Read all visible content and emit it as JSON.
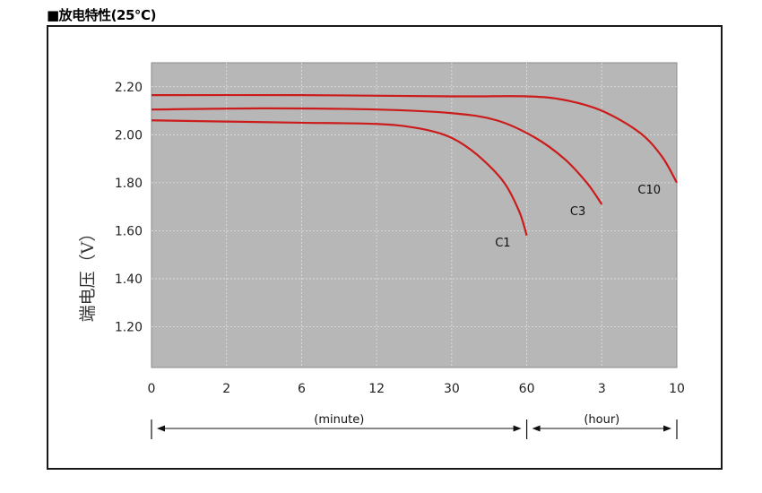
{
  "chart_data": {
    "type": "line",
    "title": "■放电特性(25℃)",
    "ylabel": "端电压（V）",
    "xlabel": "",
    "x_ticks": [
      "0",
      "2",
      "6",
      "12",
      "30",
      "60",
      "3",
      "10"
    ],
    "y_ticks": [
      "2.20",
      "2.00",
      "1.80",
      "1.60",
      "1.40",
      "1.20"
    ],
    "ylim": [
      1.03,
      2.3
    ],
    "grid": true,
    "background": "#b7b7b7",
    "line_color": "#cc1b1b",
    "x_unit_segments": [
      {
        "label": "(minute)",
        "from_tick": 0,
        "to_tick": 5
      },
      {
        "label": "(hour)",
        "from_tick": 5,
        "to_tick": 7
      }
    ],
    "series": [
      {
        "name": "C1",
        "x": [
          0,
          1,
          2,
          3,
          3.5,
          3.85,
          4.1,
          4.4,
          4.7,
          4.9,
          5.0
        ],
        "y": [
          2.06,
          2.055,
          2.05,
          2.045,
          2.03,
          2.005,
          1.97,
          1.9,
          1.8,
          1.68,
          1.58
        ],
        "label_position": "bottom-left"
      },
      {
        "name": "C3",
        "x": [
          0,
          1.5,
          3,
          4,
          4.6,
          5.1,
          5.5,
          5.8,
          6.0
        ],
        "y": [
          2.105,
          2.11,
          2.105,
          2.09,
          2.06,
          1.99,
          1.9,
          1.8,
          1.71
        ],
        "label_position": "bottom-left"
      },
      {
        "name": "C10",
        "x": [
          0,
          2,
          4,
          5,
          5.5,
          6.0,
          6.5,
          6.8,
          7.0
        ],
        "y": [
          2.165,
          2.165,
          2.16,
          2.16,
          2.145,
          2.1,
          2.01,
          1.91,
          1.8
        ],
        "label_position": "bottom-left"
      }
    ]
  }
}
